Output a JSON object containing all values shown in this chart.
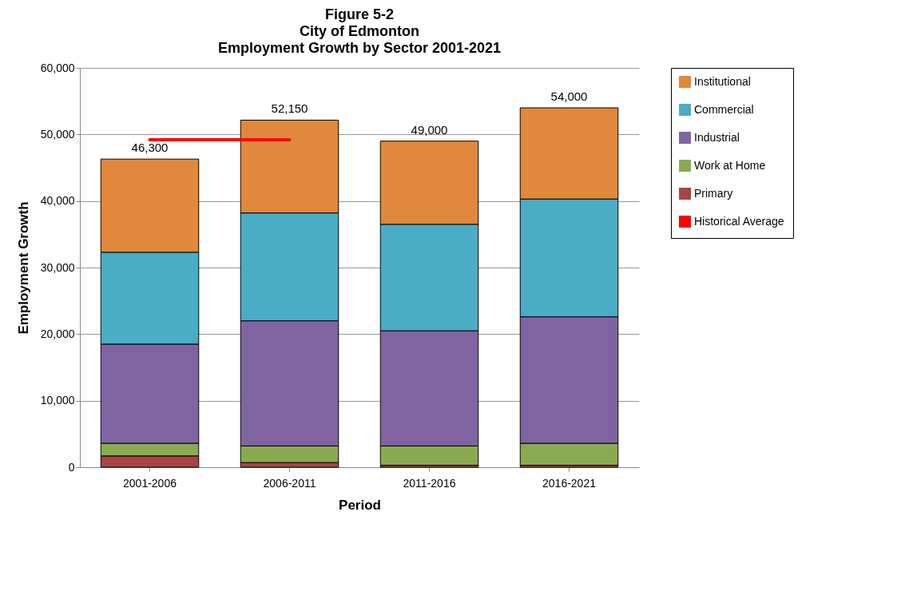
{
  "chart_data": {
    "type": "bar",
    "title": "Figure 5-2\nCity of Edmonton\nEmployment Growth by Sector 2001-2021",
    "xlabel": "Period",
    "ylabel": "Employment Growth",
    "categories": [
      "2001-2006",
      "2006-2011",
      "2011-2016",
      "2016-2021"
    ],
    "stacked": true,
    "series": [
      {
        "name": "Primary",
        "color": "#a84444",
        "values": [
          1700,
          700,
          300,
          300
        ]
      },
      {
        "name": "Work at Home",
        "color": "#8aaa52",
        "values": [
          1900,
          2500,
          2900,
          3300
        ]
      },
      {
        "name": "Industrial",
        "color": "#8064a2",
        "values": [
          14900,
          18800,
          17300,
          19000
        ]
      },
      {
        "name": "Commercial",
        "color": "#4bacc6",
        "values": [
          13800,
          16200,
          16000,
          17700
        ]
      },
      {
        "name": "Institutional",
        "color": "#e0883c",
        "values": [
          14000,
          13950,
          12500,
          13700
        ]
      },
      {
        "name": "Historical Average",
        "type": "line",
        "color": "#ff0000",
        "values": [
          49200,
          49200,
          null,
          null
        ]
      }
    ],
    "totals": [
      "46,300",
      "52,150",
      "49,000",
      "54,000"
    ],
    "ylim": [
      0,
      60000
    ],
    "yticks": [
      0,
      {
        "value": 10000,
        "label": "10,000"
      },
      {
        "value": 20000,
        "label": "20,000"
      },
      {
        "value": 30000,
        "label": "30,000"
      },
      {
        "value": 40000,
        "label": "40,000"
      },
      {
        "value": 50000,
        "label": "50,000"
      },
      {
        "value": 60000,
        "label": "60,000"
      }
    ],
    "grid": "y",
    "legend": "right"
  }
}
